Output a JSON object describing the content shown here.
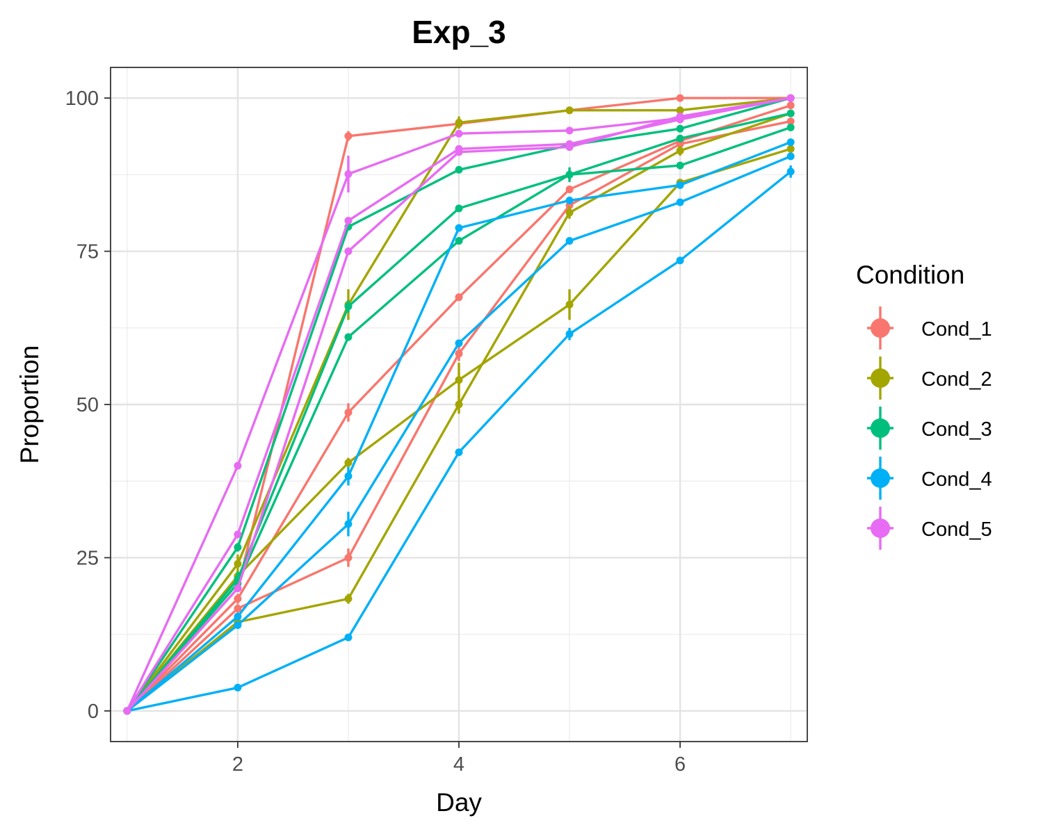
{
  "chart_data": {
    "type": "line",
    "title": "Exp_3",
    "xlabel": "Day",
    "ylabel": "Proportion",
    "xlim": [
      0.85,
      7.15
    ],
    "ylim": [
      -5,
      105
    ],
    "x_ticks": [
      2,
      4,
      6
    ],
    "y_ticks": [
      0,
      25,
      50,
      75,
      100
    ],
    "grid": true,
    "legend": {
      "title": "Condition",
      "position": "right"
    },
    "x": [
      1,
      2,
      3,
      4,
      5,
      6,
      7
    ],
    "conditions": [
      {
        "name": "Cond_1",
        "color": "#F8766D",
        "lines": [
          {
            "values": [
              0,
              20,
              93.8,
              95.8,
              98,
              100,
              100
            ],
            "errors": [
              0,
              0.5,
              0.8,
              0.5,
              0.4,
              0.3,
              0
            ]
          },
          {
            "values": [
              0,
              18.3,
              48.7,
              67.5,
              85.1,
              93.0,
              98.8
            ],
            "errors": [
              0,
              0.8,
              1.5,
              0.6,
              0.6,
              0.5,
              0.4
            ]
          },
          {
            "values": [
              0,
              16.7,
              25.0,
              58.3,
              82.5,
              92.5,
              96.2
            ],
            "errors": [
              0,
              0.7,
              1.5,
              1.2,
              0.7,
              0.5,
              0.5
            ]
          }
        ]
      },
      {
        "name": "Cond_2",
        "color": "#A3A500",
        "lines": [
          {
            "values": [
              0,
              24.0,
              66.3,
              96.0,
              98.0,
              98.0,
              100
            ],
            "errors": [
              0,
              1.5,
              2.5,
              1.0,
              0.6,
              0.4,
              0
            ]
          },
          {
            "values": [
              0,
              14.5,
              18.3,
              50.0,
              81.3,
              91.4,
              97.5
            ],
            "errors": [
              0,
              0.8,
              0.8,
              1.5,
              1.0,
              0.8,
              0.5
            ]
          },
          {
            "values": [
              0,
              22.0,
              40.5,
              54.0,
              66.3,
              86.2,
              91.7
            ],
            "errors": [
              0,
              0.8,
              0.8,
              2.8,
              2.5,
              0.6,
              0.6
            ]
          }
        ]
      },
      {
        "name": "Cond_3",
        "color": "#00BF7D",
        "lines": [
          {
            "values": [
              0,
              26.7,
              79.0,
              88.3,
              92.3,
              95.0,
              100
            ],
            "errors": [
              0,
              0.7,
              0.6,
              0.4,
              0.4,
              0.4,
              0
            ]
          },
          {
            "values": [
              0,
              21.5,
              66.0,
              82.0,
              87.5,
              93.4,
              97.5
            ],
            "errors": [
              0,
              1.2,
              1.0,
              0.6,
              0.8,
              0.5,
              0.4
            ]
          },
          {
            "values": [
              0,
              20.8,
              61.0,
              76.7,
              87.5,
              89.0,
              95.2
            ],
            "errors": [
              0,
              0.8,
              0.6,
              0.5,
              1.2,
              0.5,
              0.4
            ]
          }
        ]
      },
      {
        "name": "Cond_4",
        "color": "#00B0F6",
        "lines": [
          {
            "values": [
              0,
              15.4,
              38.3,
              78.8,
              83.3,
              85.8,
              92.8
            ],
            "errors": [
              0,
              0.6,
              1.5,
              0.5,
              0.5,
              0.5,
              0.5
            ]
          },
          {
            "values": [
              0,
              14.0,
              30.5,
              60.0,
              76.7,
              83.0,
              90.5
            ],
            "errors": [
              0,
              0.5,
              2.0,
              0.5,
              0.4,
              0.4,
              0.5
            ]
          },
          {
            "values": [
              0,
              3.8,
              12.0,
              42.2,
              61.5,
              73.5,
              88.0
            ],
            "errors": [
              0,
              0.3,
              0.5,
              0.4,
              1.0,
              0.4,
              1.0
            ]
          }
        ]
      },
      {
        "name": "Cond_5",
        "color": "#E76BF3",
        "lines": [
          {
            "values": [
              0,
              40.0,
              87.6,
              94.2,
              94.7,
              96.7,
              100
            ],
            "errors": [
              0,
              0.5,
              3.0,
              0.4,
              0.4,
              0.4,
              0
            ]
          },
          {
            "values": [
              0,
              28.8,
              80.0,
              91.7,
              92.5,
              96.5,
              100
            ],
            "errors": [
              0,
              0.5,
              0.6,
              0.4,
              0.4,
              0.4,
              0
            ]
          },
          {
            "values": [
              0,
              20.0,
              75.0,
              91.2,
              92.0,
              97.0,
              100
            ],
            "errors": [
              0,
              0.5,
              0.5,
              0.5,
              0.4,
              0.4,
              0
            ]
          }
        ]
      }
    ]
  }
}
